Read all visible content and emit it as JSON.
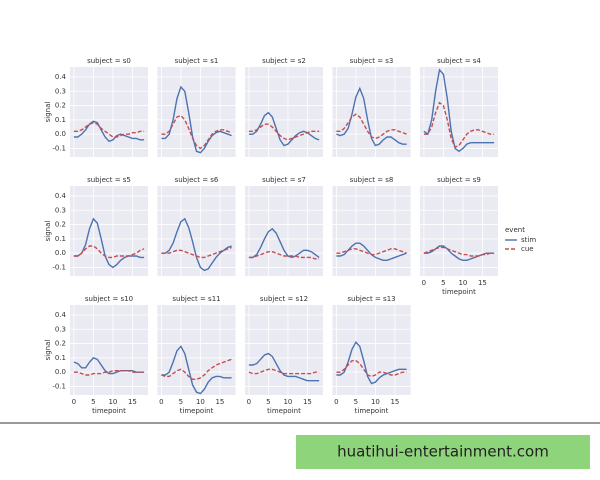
{
  "chart_data": {
    "type": "line",
    "xlabel": "timepoint",
    "ylabel": "signal",
    "legend_title": "event",
    "x": [
      0,
      1,
      2,
      3,
      4,
      5,
      6,
      7,
      8,
      9,
      10,
      11,
      12,
      13,
      14,
      15,
      16,
      17,
      18
    ],
    "xlim": [
      -1,
      19
    ],
    "xticks": [
      0,
      5,
      10,
      15
    ],
    "ylim": [
      -0.16,
      0.47
    ],
    "yticks": [
      -0.1,
      {
        "value": 0,
        "label": "0.0"
      },
      0.1,
      0.2,
      0.3,
      0.4
    ],
    "grid": true,
    "panels": [
      {
        "title": "subject = s0",
        "series": [
          {
            "name": "stim",
            "color": "#4c72b0",
            "dashed": false,
            "values": [
              -0.02,
              -0.02,
              0.0,
              0.03,
              0.07,
              0.09,
              0.08,
              0.03,
              -0.02,
              -0.05,
              -0.04,
              -0.01,
              0.0,
              -0.01,
              -0.02,
              -0.03,
              -0.03,
              -0.04,
              -0.04
            ]
          },
          {
            "name": "cue",
            "color": "#c44e52",
            "dashed": true,
            "values": [
              0.02,
              0.02,
              0.03,
              0.05,
              0.07,
              0.08,
              0.07,
              0.04,
              0.02,
              0.0,
              -0.02,
              -0.02,
              -0.01,
              0.0,
              0.0,
              0.01,
              0.01,
              0.02,
              0.02
            ]
          }
        ]
      },
      {
        "title": "subject = s1",
        "series": [
          {
            "name": "stim",
            "color": "#4c72b0",
            "dashed": false,
            "values": [
              -0.03,
              -0.03,
              0.0,
              0.1,
              0.25,
              0.33,
              0.3,
              0.15,
              -0.02,
              -0.12,
              -0.13,
              -0.1,
              -0.05,
              -0.01,
              0.01,
              0.02,
              0.01,
              0.0,
              -0.01
            ]
          },
          {
            "name": "cue",
            "color": "#c44e52",
            "dashed": true,
            "values": [
              0.0,
              0.0,
              0.02,
              0.07,
              0.12,
              0.13,
              0.1,
              0.04,
              -0.03,
              -0.08,
              -0.1,
              -0.08,
              -0.04,
              0.0,
              0.02,
              0.03,
              0.03,
              0.02,
              0.01
            ]
          }
        ]
      },
      {
        "title": "subject = s2",
        "series": [
          {
            "name": "stim",
            "color": "#4c72b0",
            "dashed": false,
            "values": [
              0.0,
              0.0,
              0.02,
              0.07,
              0.13,
              0.15,
              0.12,
              0.04,
              -0.04,
              -0.08,
              -0.07,
              -0.04,
              -0.01,
              0.01,
              0.02,
              0.01,
              -0.01,
              -0.03,
              -0.04
            ]
          },
          {
            "name": "cue",
            "color": "#c44e52",
            "dashed": true,
            "values": [
              0.02,
              0.02,
              0.03,
              0.05,
              0.07,
              0.07,
              0.05,
              0.02,
              -0.01,
              -0.03,
              -0.04,
              -0.03,
              -0.02,
              -0.01,
              0.0,
              0.01,
              0.02,
              0.02,
              0.02
            ]
          }
        ]
      },
      {
        "title": "subject = s3",
        "series": [
          {
            "name": "stim",
            "color": "#4c72b0",
            "dashed": false,
            "values": [
              0.0,
              -0.01,
              0.0,
              0.04,
              0.14,
              0.26,
              0.32,
              0.25,
              0.1,
              -0.03,
              -0.08,
              -0.07,
              -0.04,
              -0.02,
              -0.02,
              -0.04,
              -0.06,
              -0.07,
              -0.07
            ]
          },
          {
            "name": "cue",
            "color": "#c44e52",
            "dashed": true,
            "values": [
              0.02,
              0.02,
              0.04,
              0.08,
              0.12,
              0.14,
              0.12,
              0.07,
              0.02,
              -0.02,
              -0.03,
              -0.02,
              0.0,
              0.02,
              0.03,
              0.03,
              0.02,
              0.01,
              0.0
            ]
          }
        ]
      },
      {
        "title": "subject = s4",
        "series": [
          {
            "name": "stim",
            "color": "#4c72b0",
            "dashed": false,
            "values": [
              0.02,
              0.0,
              0.1,
              0.3,
              0.45,
              0.42,
              0.25,
              0.02,
              -0.1,
              -0.12,
              -0.1,
              -0.07,
              -0.06,
              -0.06,
              -0.06,
              -0.06,
              -0.06,
              -0.06,
              -0.06
            ]
          },
          {
            "name": "cue",
            "color": "#c44e52",
            "dashed": true,
            "values": [
              0.0,
              0.0,
              0.05,
              0.15,
              0.22,
              0.2,
              0.1,
              -0.03,
              -0.09,
              -0.08,
              -0.04,
              0.0,
              0.02,
              0.03,
              0.03,
              0.02,
              0.01,
              0.0,
              0.0
            ]
          }
        ]
      },
      {
        "title": "subject = s5",
        "series": [
          {
            "name": "stim",
            "color": "#4c72b0",
            "dashed": false,
            "values": [
              -0.02,
              -0.02,
              0.0,
              0.06,
              0.17,
              0.24,
              0.21,
              0.1,
              -0.02,
              -0.08,
              -0.1,
              -0.08,
              -0.05,
              -0.03,
              -0.02,
              -0.02,
              -0.02,
              -0.03,
              -0.03
            ]
          },
          {
            "name": "cue",
            "color": "#c44e52",
            "dashed": true,
            "values": [
              -0.02,
              -0.02,
              0.0,
              0.03,
              0.05,
              0.05,
              0.03,
              0.0,
              -0.02,
              -0.03,
              -0.03,
              -0.02,
              -0.02,
              -0.02,
              -0.02,
              -0.01,
              0.0,
              0.02,
              0.03
            ]
          }
        ]
      },
      {
        "title": "subject = s6",
        "series": [
          {
            "name": "stim",
            "color": "#4c72b0",
            "dashed": false,
            "values": [
              0.0,
              0.0,
              0.02,
              0.07,
              0.15,
              0.22,
              0.24,
              0.18,
              0.08,
              -0.03,
              -0.1,
              -0.12,
              -0.11,
              -0.07,
              -0.03,
              0.0,
              0.02,
              0.04,
              0.05
            ]
          },
          {
            "name": "cue",
            "color": "#c44e52",
            "dashed": true,
            "values": [
              0.0,
              0.0,
              0.0,
              0.01,
              0.02,
              0.02,
              0.01,
              0.0,
              -0.01,
              -0.02,
              -0.03,
              -0.03,
              -0.02,
              -0.01,
              0.0,
              0.01,
              0.02,
              0.03,
              0.04
            ]
          }
        ]
      },
      {
        "title": "subject = s7",
        "series": [
          {
            "name": "stim",
            "color": "#4c72b0",
            "dashed": false,
            "values": [
              -0.03,
              -0.03,
              -0.01,
              0.04,
              0.1,
              0.15,
              0.17,
              0.14,
              0.08,
              0.02,
              -0.02,
              -0.03,
              -0.02,
              0.0,
              0.02,
              0.02,
              0.01,
              -0.01,
              -0.03
            ]
          },
          {
            "name": "cue",
            "color": "#c44e52",
            "dashed": true,
            "values": [
              -0.03,
              -0.03,
              -0.02,
              -0.01,
              0.0,
              0.01,
              0.01,
              0.0,
              -0.01,
              -0.02,
              -0.02,
              -0.02,
              -0.02,
              -0.03,
              -0.03,
              -0.03,
              -0.03,
              -0.04,
              -0.04
            ]
          }
        ]
      },
      {
        "title": "subject = s8",
        "series": [
          {
            "name": "stim",
            "color": "#4c72b0",
            "dashed": false,
            "values": [
              -0.02,
              -0.02,
              -0.01,
              0.02,
              0.05,
              0.07,
              0.07,
              0.05,
              0.02,
              -0.01,
              -0.03,
              -0.04,
              -0.05,
              -0.05,
              -0.04,
              -0.03,
              -0.02,
              -0.01,
              0.0
            ]
          },
          {
            "name": "cue",
            "color": "#c44e52",
            "dashed": true,
            "values": [
              0.0,
              0.0,
              0.01,
              0.02,
              0.03,
              0.03,
              0.02,
              0.01,
              0.0,
              -0.01,
              -0.01,
              0.0,
              0.01,
              0.02,
              0.03,
              0.03,
              0.02,
              0.01,
              0.0
            ]
          }
        ]
      },
      {
        "title": "subject = s9",
        "series": [
          {
            "name": "stim",
            "color": "#4c72b0",
            "dashed": false,
            "values": [
              0.0,
              0.0,
              0.01,
              0.03,
              0.05,
              0.05,
              0.03,
              0.0,
              -0.02,
              -0.04,
              -0.05,
              -0.05,
              -0.04,
              -0.03,
              -0.02,
              -0.01,
              0.0,
              0.0,
              0.0
            ]
          },
          {
            "name": "cue",
            "color": "#c44e52",
            "dashed": true,
            "values": [
              0.0,
              0.01,
              0.02,
              0.03,
              0.04,
              0.04,
              0.03,
              0.02,
              0.01,
              0.0,
              -0.01,
              -0.01,
              -0.02,
              -0.02,
              -0.02,
              -0.01,
              -0.01,
              0.0,
              0.0
            ]
          }
        ]
      },
      {
        "title": "subject = s10",
        "series": [
          {
            "name": "stim",
            "color": "#4c72b0",
            "dashed": false,
            "values": [
              0.07,
              0.06,
              0.03,
              0.03,
              0.07,
              0.1,
              0.09,
              0.05,
              0.01,
              -0.01,
              -0.01,
              0.0,
              0.01,
              0.01,
              0.01,
              0.01,
              0.0,
              0.0,
              0.0
            ]
          },
          {
            "name": "cue",
            "color": "#c44e52",
            "dashed": true,
            "values": [
              0.0,
              0.0,
              -0.01,
              -0.02,
              -0.02,
              -0.01,
              -0.01,
              -0.01,
              0.0,
              0.0,
              0.01,
              0.01,
              0.01,
              0.01,
              0.01,
              0.0,
              0.0,
              0.0,
              0.0
            ]
          }
        ]
      },
      {
        "title": "subject = s11",
        "series": [
          {
            "name": "stim",
            "color": "#4c72b0",
            "dashed": false,
            "values": [
              -0.02,
              -0.02,
              0.0,
              0.07,
              0.15,
              0.18,
              0.13,
              0.02,
              -0.09,
              -0.14,
              -0.15,
              -0.12,
              -0.07,
              -0.04,
              -0.03,
              -0.03,
              -0.04,
              -0.04,
              -0.04
            ]
          },
          {
            "name": "cue",
            "color": "#c44e52",
            "dashed": true,
            "values": [
              -0.02,
              -0.03,
              -0.03,
              -0.01,
              0.01,
              0.02,
              0.0,
              -0.03,
              -0.05,
              -0.05,
              -0.04,
              -0.02,
              0.01,
              0.03,
              0.05,
              0.06,
              0.07,
              0.08,
              0.09
            ]
          }
        ]
      },
      {
        "title": "subject = s12",
        "series": [
          {
            "name": "stim",
            "color": "#4c72b0",
            "dashed": false,
            "values": [
              0.05,
              0.05,
              0.06,
              0.09,
              0.12,
              0.13,
              0.11,
              0.06,
              0.01,
              -0.02,
              -0.03,
              -0.03,
              -0.03,
              -0.04,
              -0.05,
              -0.06,
              -0.06,
              -0.06,
              -0.06
            ]
          },
          {
            "name": "cue",
            "color": "#c44e52",
            "dashed": true,
            "values": [
              0.0,
              -0.01,
              -0.01,
              0.0,
              0.01,
              0.02,
              0.02,
              0.01,
              0.0,
              -0.01,
              -0.01,
              -0.01,
              -0.01,
              -0.01,
              -0.01,
              -0.01,
              -0.01,
              0.0,
              0.0
            ]
          }
        ]
      },
      {
        "title": "subject = s13",
        "series": [
          {
            "name": "stim",
            "color": "#4c72b0",
            "dashed": false,
            "values": [
              -0.02,
              -0.02,
              0.0,
              0.07,
              0.16,
              0.21,
              0.18,
              0.08,
              -0.03,
              -0.08,
              -0.07,
              -0.04,
              -0.02,
              -0.01,
              0.0,
              0.01,
              0.02,
              0.02,
              0.02
            ]
          },
          {
            "name": "cue",
            "color": "#c44e52",
            "dashed": true,
            "values": [
              0.0,
              0.0,
              0.02,
              0.05,
              0.08,
              0.08,
              0.06,
              0.02,
              -0.02,
              -0.03,
              -0.02,
              0.0,
              0.0,
              -0.01,
              -0.02,
              -0.02,
              -0.01,
              0.0,
              0.0
            ]
          }
        ]
      }
    ]
  },
  "watermark": "huatihui-entertainment.com"
}
